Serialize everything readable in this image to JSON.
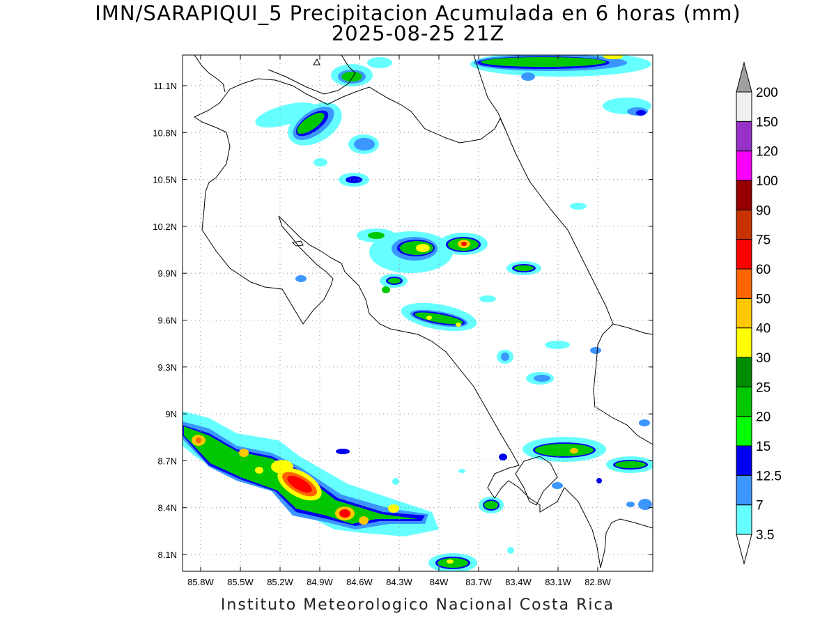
{
  "header": {
    "title_line1": "IMN/SARAPIQUI_5 Precipitacion Acumulada en 6 horas (mm)",
    "title_line2": "2025-08-25 21Z"
  },
  "footer": {
    "credit": "Instituto Meteorologico Nacional Costa Rica"
  },
  "map": {
    "lat_range": [
      8.0,
      11.3
    ],
    "lon_range": [
      -86.0,
      -83.0
    ],
    "grid": true,
    "lat_ticks": [
      {
        "value": 11.1,
        "label": "11.1N"
      },
      {
        "value": 10.8,
        "label": "10.8N"
      },
      {
        "value": 10.5,
        "label": "10.5N"
      },
      {
        "value": 10.2,
        "label": "10.2N"
      },
      {
        "value": 9.9,
        "label": "9.9N"
      },
      {
        "value": 9.6,
        "label": "9.6N"
      },
      {
        "value": 9.3,
        "label": "9.3N"
      },
      {
        "value": 9.0,
        "label": "9N"
      },
      {
        "value": 8.7,
        "label": "8.7N"
      },
      {
        "value": 8.4,
        "label": "8.4N"
      },
      {
        "value": 8.1,
        "label": "8.1N"
      }
    ],
    "lon_ticks": [
      {
        "value": -85.8,
        "label": "85.8W"
      },
      {
        "value": -85.5,
        "label": "85.5W"
      },
      {
        "value": -85.2,
        "label": "85.2W"
      },
      {
        "value": -84.9,
        "label": "84.9W"
      },
      {
        "value": -84.6,
        "label": "84.6W"
      },
      {
        "value": -84.3,
        "label": "84.3W"
      },
      {
        "value": -84.0,
        "label": "84W"
      },
      {
        "value": -83.7,
        "label": "83.7W"
      },
      {
        "value": -83.4,
        "label": "83.4W"
      },
      {
        "value": -83.1,
        "label": "83.1W"
      },
      {
        "value": -82.8,
        "label": "82.8W"
      }
    ]
  },
  "colorbar": {
    "top_arrow_color": "#a0a0a0",
    "bottom_arrow_color": "#ffffff",
    "bins": [
      {
        "color": "#66ffff",
        "label": "3.5"
      },
      {
        "color": "#3c96ff",
        "label": "7"
      },
      {
        "color": "#0000f0",
        "label": "12.5"
      },
      {
        "color": "#00ff00",
        "label": "15"
      },
      {
        "color": "#00c800",
        "label": "20"
      },
      {
        "color": "#008c00",
        "label": "25"
      },
      {
        "color": "#ffff00",
        "label": "30"
      },
      {
        "color": "#ffc800",
        "label": "40"
      },
      {
        "color": "#ff6400",
        "label": "50"
      },
      {
        "color": "#ff0000",
        "label": "60"
      },
      {
        "color": "#c83200",
        "label": "75"
      },
      {
        "color": "#960000",
        "label": "90"
      },
      {
        "color": "#ff00ff",
        "label": "100"
      },
      {
        "color": "#9632c8",
        "label": "120"
      },
      {
        "color": "#f0f0f0",
        "label": "150"
      }
    ],
    "top_label": "200"
  }
}
